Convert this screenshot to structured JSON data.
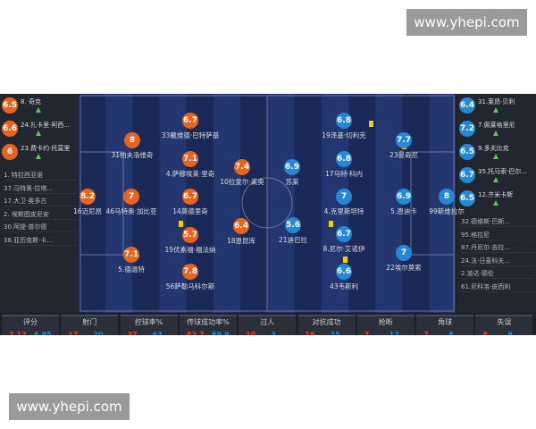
{
  "watermark": "www.yhepi.com",
  "home": {
    "subs_rated": [
      {
        "rating": 6.5,
        "name": "8. 奇克"
      },
      {
        "rating": 6.6,
        "name": "24.扎卡里·阿西..."
      },
      {
        "rating": 6,
        "name": "23.费卡约·托莫里"
      }
    ],
    "subs": [
      "1. 特拉西亚诺",
      "37.马特奥·拉塔...",
      "17.大卫·奥多古",
      "2. 埃斯图皮尼安",
      "30.阿提·普尔德",
      "38.亚历克斯·卡..."
    ],
    "players": [
      {
        "rating": 8.2,
        "name": "16迈尼昂"
      },
      {
        "rating": 8,
        "name": "31帕夫洛维奇"
      },
      {
        "rating": 7,
        "name": "46马特奥·加比亚"
      },
      {
        "rating": 7.1,
        "name": "5.德温特"
      },
      {
        "rating": 6.7,
        "name": "33戴维德·巴特萨基"
      },
      {
        "rating": 7.1,
        "name": "4.萨穆埃莱·里奇"
      },
      {
        "rating": 6.7,
        "name": "14莫德里奇"
      },
      {
        "rating": 5.7,
        "name": "19优素福·福法纳"
      },
      {
        "rating": 7.8,
        "name": "56萨勒马科尔斯"
      },
      {
        "rating": 7.4,
        "name": "10拉斐尔·莱奥"
      },
      {
        "rating": 6.4,
        "name": "18恩昆库"
      }
    ]
  },
  "away": {
    "subs_rated": [
      {
        "rating": 6.4,
        "name": "31.莱昂·贝利"
      },
      {
        "rating": 7.2,
        "name": "7.佩莱格里尼"
      },
      {
        "rating": 6.5,
        "name": "9.多夫比克"
      },
      {
        "rating": 6.7,
        "name": "35.托马索·巴尔..."
      },
      {
        "rating": 6.5,
        "name": "12.齐米卡斯"
      }
    ],
    "subs": [
      "32.德维斯·巴斯...",
      "95.格拉尼",
      "87.丹尼尔·吉拉...",
      "24.法·日麦科夫...",
      "2.迪达·德伦",
      "61.尼科洛·皮西利"
    ],
    "players": [
      {
        "rating": 6.9,
        "name": "苏莱"
      },
      {
        "rating": 5.6,
        "name": "21迪巴拉"
      },
      {
        "rating": 6.8,
        "name": "19泽基·切利克"
      },
      {
        "rating": 6.8,
        "name": "17马特·科内"
      },
      {
        "rating": 7,
        "name": "4.克里斯坦特"
      },
      {
        "rating": 6.7,
        "name": "8.尼尔·艾诺伊"
      },
      {
        "rating": 6.6,
        "name": "43韦斯利"
      },
      {
        "rating": 7.7,
        "name": "23曼奇尼"
      },
      {
        "rating": 6.9,
        "name": "5.恩迪卡"
      },
      {
        "rating": 7,
        "name": "22埃尔莫索"
      },
      {
        "rating": 8,
        "name": "99斯维拉尔"
      }
    ]
  },
  "stats": [
    {
      "label": "评分",
      "home": 7.12,
      "away": 6.85
    },
    {
      "label": "射门",
      "home": 17,
      "away": 20
    },
    {
      "label": "控球率%",
      "home": 37,
      "away": 63
    },
    {
      "label": "传球成功率%",
      "home": 82.7,
      "away": 89.9
    },
    {
      "label": "过人",
      "home": 10,
      "away": 3
    },
    {
      "label": "对抗成功",
      "home": 16,
      "away": 25
    },
    {
      "label": "抢断",
      "home": 7,
      "away": 12
    },
    {
      "label": "角球",
      "home": 7,
      "away": 8
    },
    {
      "label": "失误",
      "home": 8,
      "away": 8
    }
  ]
}
